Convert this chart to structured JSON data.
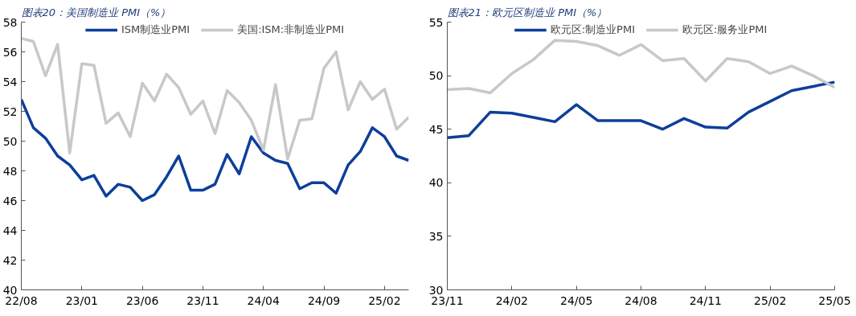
{
  "chart_data": [
    {
      "type": "line",
      "title": "图表20：美国制造业 PMI（%）",
      "legend": "top",
      "grid": false,
      "line_style": "solid",
      "marker": "none",
      "categories": [
        "22/08",
        null,
        null,
        null,
        null,
        "23/01",
        null,
        null,
        null,
        null,
        "23/06",
        null,
        null,
        null,
        null,
        "23/11",
        null,
        null,
        null,
        null,
        "24/04",
        null,
        null,
        null,
        null,
        "24/09",
        null,
        null,
        null,
        null,
        "25/02",
        null,
        null
      ],
      "series": [
        {
          "name": "ISM制造业PMI",
          "color": "#0d3f9a",
          "values": [
            52.8,
            50.9,
            50.2,
            49.0,
            48.4,
            47.4,
            47.7,
            46.3,
            47.1,
            46.9,
            46.0,
            46.4,
            47.6,
            49.0,
            46.7,
            46.7,
            47.1,
            49.1,
            47.8,
            50.3,
            49.2,
            48.7,
            48.5,
            46.8,
            47.2,
            47.2,
            46.5,
            48.4,
            49.3,
            50.9,
            50.3,
            49.0,
            48.7
          ]
        },
        {
          "name": "美国:ISM:非制造业PMI",
          "color": "#c8c8c8",
          "values": [
            56.9,
            56.7,
            54.4,
            56.5,
            49.2,
            55.2,
            55.1,
            51.2,
            51.9,
            50.3,
            53.9,
            52.7,
            54.5,
            53.6,
            51.8,
            52.7,
            50.5,
            53.4,
            52.6,
            51.4,
            49.4,
            53.8,
            48.8,
            51.4,
            51.5,
            54.9,
            56.0,
            52.1,
            54.0,
            52.8,
            53.5,
            50.8,
            51.6
          ]
        }
      ],
      "ylim": [
        40,
        58
      ],
      "yticks": [
        40,
        42,
        44,
        46,
        48,
        50,
        52,
        54,
        56,
        58
      ]
    },
    {
      "type": "line",
      "title": "图表21：欧元区制造业 PMI（%）",
      "legend": "top",
      "grid": false,
      "line_style": "solid",
      "marker": "none",
      "categories": [
        "23/11",
        null,
        null,
        "24/02",
        null,
        null,
        "24/05",
        null,
        null,
        "24/08",
        null,
        null,
        "24/11",
        null,
        null,
        "25/02",
        null,
        null,
        "25/05"
      ],
      "series": [
        {
          "name": "欧元区:制造业PMI",
          "color": "#0d3f9a",
          "values": [
            44.2,
            44.4,
            46.6,
            46.5,
            46.1,
            45.7,
            47.3,
            45.8,
            45.8,
            45.8,
            45.0,
            46.0,
            45.2,
            45.1,
            46.6,
            47.6,
            48.6,
            49.0,
            49.4
          ]
        },
        {
          "name": "欧元区:服务业PMI",
          "color": "#c8c8c8",
          "values": [
            48.7,
            48.8,
            48.4,
            50.2,
            51.5,
            53.3,
            53.2,
            52.8,
            51.9,
            52.9,
            51.4,
            51.6,
            49.5,
            51.6,
            51.3,
            50.2,
            50.9,
            50.0,
            48.9
          ]
        }
      ],
      "ylim": [
        30,
        55
      ],
      "yticks": [
        30,
        35,
        40,
        45,
        50,
        55
      ]
    }
  ]
}
